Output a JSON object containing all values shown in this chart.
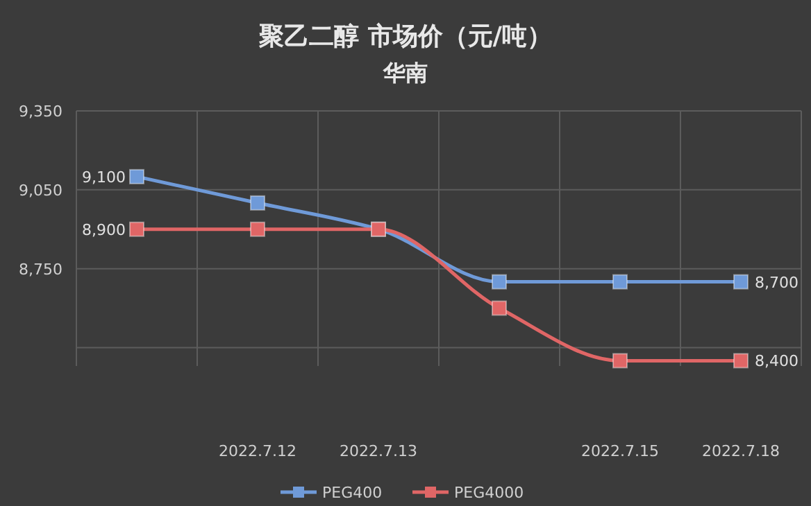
{
  "chart_data": {
    "type": "line",
    "title": "聚乙二醇  市场价（元/吨）",
    "subtitle": "华南",
    "categories": [
      null,
      "2022.7.12",
      "2022.7.13",
      null,
      "2022.7.15",
      "2022.7.18"
    ],
    "series": [
      {
        "name": "PEG400",
        "color": "#6f9ad8",
        "values": [
          9100,
          9000,
          8900,
          8700,
          8700,
          8700
        ],
        "value_labels": [
          "9,100",
          null,
          null,
          null,
          null,
          "8,700"
        ]
      },
      {
        "name": "PEG4000",
        "color": "#e06666",
        "values": [
          8900,
          8900,
          8900,
          8600,
          8400,
          8400
        ],
        "value_labels": [
          "8,900",
          null,
          null,
          null,
          null,
          "8,400"
        ]
      }
    ],
    "ylim": [
      8380,
      9350
    ],
    "yticks": [
      {
        "value": 8450,
        "label": null
      },
      {
        "value": 8750,
        "label": "8,750"
      },
      {
        "value": 9050,
        "label": "9,050"
      },
      {
        "value": 9350,
        "label": "9,350"
      }
    ],
    "grid": true,
    "legend": "bottom",
    "marker": "square",
    "line_style": "solid"
  }
}
